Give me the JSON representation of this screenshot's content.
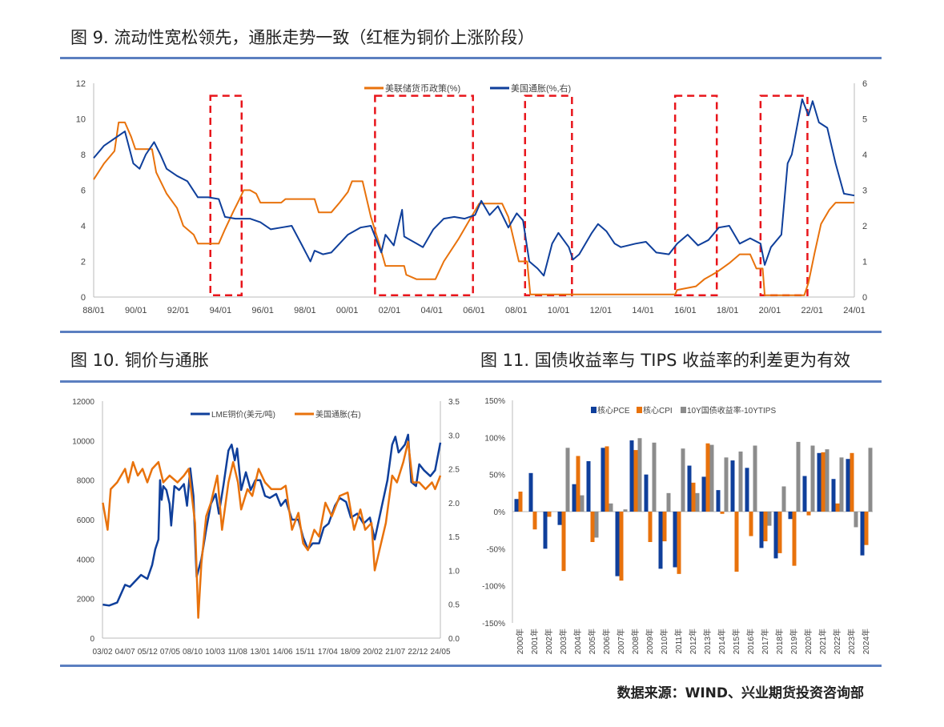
{
  "titles": {
    "fig9": "图 9.  流动性宽松领先，通胀走势一致（红框为铜价上涨阶段）",
    "fig10": "图 10.  铜价与通胀",
    "fig11": "图 11.  国债收益率与 TIPS 收益率的利差更为有效"
  },
  "source": "数据来源：WIND、兴业期货投资咨询部",
  "colors": {
    "blue": "#0f3f9b",
    "orange": "#e8720c",
    "gray": "#8c8c8c",
    "red": "#e8151b",
    "rule": "#5b7fc0"
  },
  "chart_data": [
    {
      "type": "line",
      "title": "图 9",
      "xlim": [
        1988,
        2024.5
      ],
      "xticks": [
        "88/01",
        "90/01",
        "92/01",
        "94/01",
        "96/01",
        "98/01",
        "00/01",
        "02/01",
        "04/01",
        "06/01",
        "08/01",
        "10/01",
        "12/01",
        "14/01",
        "16/01",
        "18/01",
        "20/01",
        "22/01",
        "24/01"
      ],
      "ylim_left": [
        0,
        12
      ],
      "yticks_left": [
        "0",
        "2",
        "4",
        "6",
        "8",
        "10",
        "12"
      ],
      "ylim_right": [
        0,
        6
      ],
      "yticks_right": [
        "0",
        "1",
        "2",
        "3",
        "4",
        "5",
        "6"
      ],
      "series": [
        {
          "name": "美联储货币政策(%)",
          "axis": "left",
          "color": "#e8720c",
          "x": [
            1988.0,
            1988.5,
            1989.0,
            1989.2,
            1989.5,
            1989.8,
            1990.0,
            1990.8,
            1991.0,
            1991.5,
            1992.0,
            1992.3,
            1992.8,
            1993.0,
            1994.0,
            1994.3,
            1994.7,
            1995.0,
            1995.2,
            1995.5,
            1995.8,
            1996.0,
            1997.0,
            1997.2,
            1998.6,
            1998.8,
            1999.4,
            1999.8,
            2000.2,
            2000.4,
            2000.9,
            2001.0,
            2001.3,
            2001.7,
            2002.0,
            2002.9,
            2003.0,
            2003.5,
            2004.4,
            2004.8,
            2005.5,
            2006.0,
            2006.5,
            2007.6,
            2007.9,
            2008.2,
            2008.4,
            2008.8,
            2008.95,
            2015.9,
            2016.0,
            2016.9,
            2017.3,
            2017.9,
            2018.5,
            2019.0,
            2019.5,
            2019.8,
            2020.1,
            2020.2,
            2022.1,
            2022.3,
            2022.6,
            2022.9,
            2023.3,
            2023.6,
            2024.5
          ],
          "y": [
            6.6,
            7.5,
            8.2,
            9.8,
            9.8,
            9.0,
            8.3,
            8.3,
            7.0,
            5.8,
            5.0,
            4.0,
            3.5,
            3.0,
            3.0,
            3.8,
            4.8,
            5.5,
            6.0,
            6.0,
            5.8,
            5.3,
            5.3,
            5.5,
            5.5,
            4.75,
            4.75,
            5.3,
            5.9,
            6.5,
            6.5,
            6.0,
            4.5,
            3.0,
            1.75,
            1.75,
            1.25,
            1.0,
            1.0,
            2.0,
            3.25,
            4.25,
            5.25,
            5.25,
            4.5,
            3.0,
            2.0,
            2.0,
            0.15,
            0.15,
            0.4,
            0.6,
            1.0,
            1.4,
            1.9,
            2.4,
            2.4,
            1.6,
            1.6,
            0.1,
            0.1,
            0.8,
            2.5,
            4.1,
            4.9,
            5.3,
            5.3
          ]
        },
        {
          "name": "美国通胀(%,右)",
          "axis": "right",
          "color": "#0f3f9b",
          "x": [
            1988.0,
            1988.5,
            1989.0,
            1989.5,
            1989.9,
            1990.2,
            1990.5,
            1990.9,
            1991.2,
            1991.5,
            1992.0,
            1992.5,
            1993.0,
            1993.5,
            1994.0,
            1994.3,
            1994.8,
            1995.5,
            1996.0,
            1996.5,
            1997.0,
            1997.5,
            1998.0,
            1998.4,
            1998.6,
            1999.0,
            1999.4,
            1999.8,
            2000.2,
            2000.8,
            2001.3,
            2001.8,
            2002.0,
            2002.4,
            2002.8,
            2002.9,
            2003.5,
            2003.8,
            2004.3,
            2004.8,
            2005.3,
            2005.8,
            2006.3,
            2006.6,
            2007.0,
            2007.4,
            2007.9,
            2008.3,
            2008.6,
            2008.9,
            2009.3,
            2009.6,
            2010.0,
            2010.3,
            2010.8,
            2011.0,
            2011.3,
            2011.9,
            2012.2,
            2012.6,
            2013.0,
            2013.3,
            2014.0,
            2014.5,
            2015.0,
            2015.6,
            2016.0,
            2016.5,
            2017.0,
            2017.5,
            2018.0,
            2018.5,
            2019.0,
            2019.5,
            2020.0,
            2020.2,
            2020.5,
            2021.0,
            2021.3,
            2021.5,
            2021.9,
            2022.0,
            2022.3,
            2022.5,
            2022.8,
            2023.2,
            2023.6,
            2024.0,
            2024.5
          ],
          "y": [
            3.9,
            4.25,
            4.45,
            4.65,
            3.75,
            3.6,
            4.0,
            4.35,
            4.0,
            3.6,
            3.4,
            3.25,
            2.8,
            2.8,
            2.75,
            2.25,
            2.2,
            2.2,
            2.1,
            1.9,
            1.95,
            2.0,
            1.45,
            1.0,
            1.3,
            1.2,
            1.25,
            1.5,
            1.75,
            1.95,
            2.0,
            1.25,
            1.75,
            1.45,
            2.45,
            1.7,
            1.5,
            1.4,
            1.9,
            2.2,
            2.25,
            2.2,
            2.3,
            2.7,
            2.3,
            2.55,
            1.95,
            2.35,
            2.15,
            1.0,
            0.8,
            0.6,
            1.5,
            1.8,
            1.4,
            1.05,
            1.2,
            1.8,
            2.05,
            1.85,
            1.5,
            1.4,
            1.5,
            1.55,
            1.25,
            1.2,
            1.5,
            1.75,
            1.45,
            1.6,
            1.95,
            2.0,
            1.5,
            1.65,
            1.5,
            0.9,
            1.4,
            1.75,
            3.75,
            4.0,
            5.25,
            5.55,
            5.1,
            5.5,
            4.9,
            4.75,
            3.75,
            2.9,
            2.85
          ]
        }
      ],
      "annotations": {
        "type": "dashed-box",
        "color": "#e8151b",
        "y_range_right": [
          0.05,
          5.65
        ],
        "x_ranges": [
          [
            1993.6,
            1995.1
          ],
          [
            2001.5,
            2006.2
          ],
          [
            2008.7,
            2010.95
          ],
          [
            2015.9,
            2017.9
          ],
          [
            2020.0,
            2022.25
          ]
        ]
      }
    },
    {
      "type": "line",
      "title": "图 10",
      "xlim": [
        2003.08,
        2024.33
      ],
      "xticks": [
        "03/02",
        "04/07",
        "05/12",
        "07/05",
        "08/10",
        "10/03",
        "11/08",
        "13/01",
        "14/06",
        "15/11",
        "17/04",
        "18/09",
        "20/02",
        "21/07",
        "22/12",
        "24/05"
      ],
      "ylim_left": [
        0,
        12000
      ],
      "yticks_left": [
        "0",
        "2000",
        "4000",
        "6000",
        "8000",
        "10000",
        "12000"
      ],
      "ylim_right": [
        0,
        3.5
      ],
      "yticks_right": [
        "0.0",
        "0.5",
        "1.0",
        "1.5",
        "2.0",
        "2.5",
        "3.0",
        "3.5"
      ],
      "series": [
        {
          "name": "LME铜价(美元/吨)",
          "axis": "left",
          "color": "#0f3f9b",
          "x": [
            2003.1,
            2003.5,
            2004.0,
            2004.5,
            2004.8,
            2005.5,
            2005.9,
            2006.2,
            2006.4,
            2006.6,
            2006.7,
            2006.8,
            2006.9,
            2007.1,
            2007.3,
            2007.4,
            2007.6,
            2007.9,
            2008.2,
            2008.4,
            2008.6,
            2008.8,
            2008.95,
            2009.0,
            2009.3,
            2009.6,
            2009.9,
            2010.2,
            2010.4,
            2010.7,
            2011.0,
            2011.2,
            2011.4,
            2011.55,
            2011.8,
            2012.1,
            2012.4,
            2012.7,
            2013.0,
            2013.3,
            2013.6,
            2014.0,
            2014.3,
            2014.6,
            2015.0,
            2015.4,
            2015.7,
            2016.0,
            2016.3,
            2016.7,
            2017.0,
            2017.3,
            2017.7,
            2018.0,
            2018.4,
            2018.7,
            2019.1,
            2019.5,
            2019.9,
            2020.2,
            2020.6,
            2021.0,
            2021.3,
            2021.5,
            2021.7,
            2022.1,
            2022.3,
            2022.5,
            2022.8,
            2023.0,
            2023.3,
            2023.7,
            2024.0,
            2024.33
          ],
          "y": [
            1700,
            1650,
            1800,
            2700,
            2600,
            3200,
            3000,
            3700,
            4500,
            5000,
            8000,
            7000,
            7700,
            7500,
            6800,
            5700,
            7700,
            7500,
            7800,
            6700,
            8600,
            7200,
            4000,
            3100,
            4000,
            5500,
            6800,
            7300,
            6300,
            7800,
            9500,
            9800,
            9000,
            9600,
            7500,
            8400,
            7500,
            8000,
            8000,
            7200,
            7100,
            7300,
            6700,
            7000,
            6000,
            6000,
            5100,
            4500,
            4800,
            4800,
            5600,
            5800,
            6700,
            7100,
            6900,
            6100,
            6300,
            5800,
            6100,
            5000,
            6500,
            8000,
            9800,
            10200,
            9400,
            9800,
            10300,
            7900,
            7700,
            8800,
            8500,
            8200,
            8500,
            9900
          ]
        },
        {
          "name": "美国通胀(右)",
          "axis": "right",
          "color": "#e8720c",
          "x": [
            2003.1,
            2003.4,
            2003.6,
            2004.0,
            2004.5,
            2004.7,
            2005.0,
            2005.3,
            2005.6,
            2005.9,
            2006.2,
            2006.6,
            2006.9,
            2007.3,
            2007.8,
            2008.2,
            2008.5,
            2008.9,
            2009.1,
            2009.3,
            2009.6,
            2009.9,
            2010.3,
            2010.6,
            2011.0,
            2011.3,
            2011.6,
            2011.8,
            2012.2,
            2012.5,
            2012.9,
            2013.3,
            2013.7,
            2014.3,
            2014.6,
            2015.0,
            2015.4,
            2015.7,
            2016.0,
            2016.4,
            2016.7,
            2017.1,
            2017.5,
            2018.0,
            2018.5,
            2018.9,
            2019.3,
            2019.6,
            2020.0,
            2020.2,
            2020.5,
            2020.9,
            2021.3,
            2021.6,
            2022.0,
            2022.3,
            2022.6,
            2023.0,
            2023.4,
            2023.8,
            2024.0,
            2024.33
          ],
          "y": [
            2.0,
            1.6,
            2.2,
            2.3,
            2.5,
            2.3,
            2.6,
            2.4,
            2.5,
            2.3,
            2.5,
            2.6,
            2.3,
            2.4,
            2.3,
            2.4,
            2.5,
            1.7,
            0.3,
            1.1,
            1.8,
            2.0,
            2.4,
            1.6,
            2.3,
            2.6,
            2.3,
            1.9,
            2.2,
            2.1,
            2.5,
            2.3,
            2.2,
            2.2,
            2.25,
            1.6,
            1.85,
            1.4,
            1.3,
            1.6,
            1.5,
            2.0,
            1.8,
            2.1,
            2.15,
            1.6,
            1.9,
            1.6,
            1.7,
            1.0,
            1.3,
            1.7,
            2.4,
            2.3,
            2.6,
            2.9,
            2.3,
            2.3,
            2.2,
            2.3,
            2.2,
            2.4
          ]
        }
      ]
    },
    {
      "type": "bar",
      "title": "图 11",
      "categories": [
        "2000年",
        "2001年",
        "2002年",
        "2003年",
        "2004年",
        "2005年",
        "2006年",
        "2007年",
        "2008年",
        "2009年",
        "2010年",
        "2011年",
        "2012年",
        "2013年",
        "2014年",
        "2015年",
        "2016年",
        "2017年",
        "2018年",
        "2019年",
        "2020年",
        "2021年",
        "2022年",
        "2023年",
        "2024年"
      ],
      "ylim": [
        -150,
        150
      ],
      "yticks": [
        "-150%",
        "-100%",
        "-50%",
        "0%",
        "50%",
        "100%",
        "150%"
      ],
      "series": [
        {
          "name": "核心PCE",
          "color": "#0f3f9b",
          "values": [
            17,
            52,
            -50,
            -18,
            37,
            68,
            86,
            -87,
            96,
            50,
            -77,
            -75,
            62,
            47,
            29,
            69,
            59,
            -49,
            -63,
            -10,
            48,
            79,
            44,
            71,
            -59
          ]
        },
        {
          "name": "核心CPI",
          "color": "#e8720c",
          "values": [
            27,
            -24,
            -7,
            -80,
            75,
            -41,
            88,
            -93,
            83,
            -41,
            -40,
            -84,
            39,
            92,
            -3,
            -81,
            -33,
            -40,
            -56,
            -73,
            -5,
            80,
            11,
            79,
            -45
          ]
        },
        {
          "name": "10Y国债收益率-10YTIPS",
          "color": "#8c8c8c",
          "values": [
            0,
            0,
            0,
            86,
            22,
            -35,
            11,
            3,
            99,
            93,
            25,
            85,
            25,
            90,
            73,
            81,
            89,
            -19,
            34,
            94,
            89,
            84,
            73,
            -21,
            86
          ]
        }
      ]
    }
  ]
}
